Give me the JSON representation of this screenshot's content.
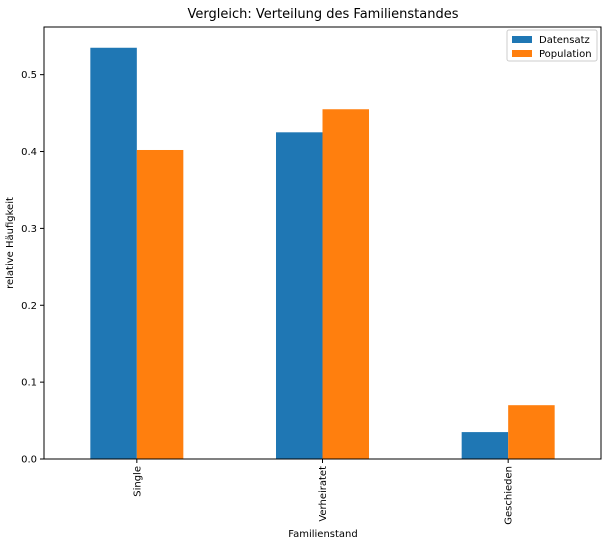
{
  "chart_data": {
    "type": "bar",
    "title": "Vergleich: Verteilung des Familienstandes",
    "xlabel": "Familienstand",
    "ylabel": "relative Häufigkeit",
    "categories": [
      "Single",
      "Verheiratet",
      "Geschieden"
    ],
    "series": [
      {
        "name": "Datensatz",
        "values": [
          0.535,
          0.425,
          0.035
        ],
        "color": "#1f77b4"
      },
      {
        "name": "Population",
        "values": [
          0.402,
          0.455,
          0.07
        ],
        "color": "#ff7f0e"
      }
    ],
    "ylim": [
      0,
      0.562
    ],
    "yticks": [
      0.0,
      0.1,
      0.2,
      0.3,
      0.4,
      0.5
    ],
    "ytick_labels": [
      "0.0",
      "0.1",
      "0.2",
      "0.3",
      "0.4",
      "0.5"
    ],
    "grid": false,
    "legend_position": "top-right"
  }
}
